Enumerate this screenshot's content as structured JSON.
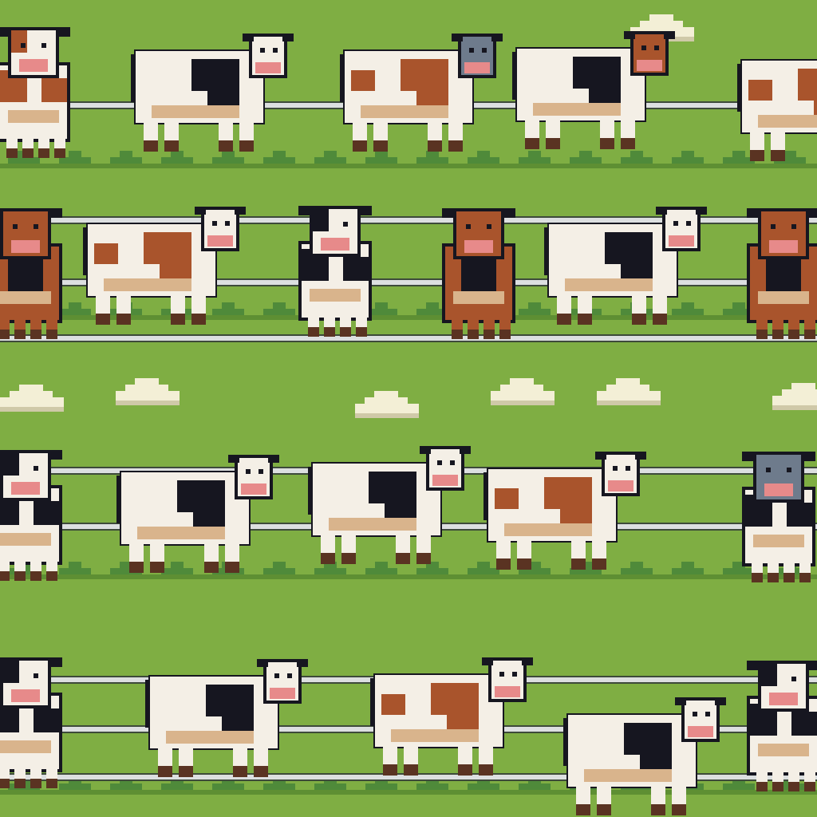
{
  "scene": {
    "kind": "pixel-art pasture pattern",
    "colors": {
      "grass": "#7fae43",
      "grass_dark": "#5e8f33",
      "grass_tuft": "#4f8a3a",
      "fence_rail": "#dcdfe0",
      "fence_outline": "#3d4a3a",
      "cloud": "#f3efd6",
      "cloud_shadow": "#cfc9a8",
      "cow_white": "#f4efe6",
      "cow_black": "#161620",
      "cow_brown": "#a9542c",
      "cow_grey": "#6e7b8c",
      "cow_nose": "#e78a8a",
      "cow_hoof": "#5a3322",
      "cow_belly": "#d9b48c"
    },
    "herd": [
      {
        "row": 1,
        "cows": [
          {
            "facing": "front",
            "pattern": "brown-patch"
          },
          {
            "facing": "side",
            "pattern": "black-patch"
          },
          {
            "facing": "side",
            "pattern": "brown-patch",
            "head": "grey"
          },
          {
            "facing": "side",
            "pattern": "black-patch",
            "head": "brown"
          },
          {
            "facing": "side",
            "pattern": "brown-patch"
          }
        ]
      },
      {
        "row": 2,
        "cows": [
          {
            "facing": "front",
            "pattern": "solid-brown"
          },
          {
            "facing": "side",
            "pattern": "brown-patch"
          },
          {
            "facing": "front",
            "pattern": "black-patch"
          },
          {
            "facing": "front",
            "pattern": "solid-brown"
          },
          {
            "facing": "side",
            "pattern": "black-patch"
          },
          {
            "facing": "front",
            "pattern": "solid-brown"
          }
        ]
      },
      {
        "row": 3,
        "cows": [
          {
            "facing": "front",
            "pattern": "black-patch"
          },
          {
            "facing": "side",
            "pattern": "black-patch"
          },
          {
            "facing": "side",
            "pattern": "black-patch"
          },
          {
            "facing": "side",
            "pattern": "brown-patch"
          },
          {
            "facing": "front",
            "pattern": "black-patch",
            "head": "grey"
          }
        ]
      },
      {
        "row": 4,
        "cows": [
          {
            "facing": "front",
            "pattern": "black-patch"
          },
          {
            "facing": "side",
            "pattern": "black-patch"
          },
          {
            "facing": "side",
            "pattern": "brown-patch"
          },
          {
            "facing": "side",
            "pattern": "black-patch"
          },
          {
            "facing": "front",
            "pattern": "black-patch"
          }
        ]
      }
    ],
    "cloud_count": 6
  }
}
